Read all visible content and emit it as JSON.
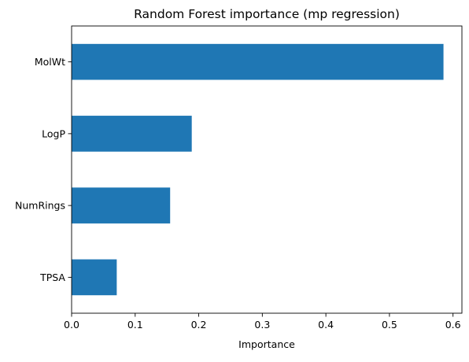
{
  "chart_data": {
    "type": "bar",
    "orientation": "horizontal",
    "title": "Random Forest importance (mp regression)",
    "xlabel": "Importance",
    "ylabel": "",
    "categories": [
      "MolWt",
      "LogP",
      "NumRings",
      "TPSA"
    ],
    "values": [
      0.585,
      0.189,
      0.155,
      0.071
    ],
    "xlim": [
      0.0,
      0.614
    ],
    "xticks": [
      0.0,
      0.1,
      0.2,
      0.3,
      0.4,
      0.5,
      0.6
    ],
    "xtick_labels": [
      "0.0",
      "0.1",
      "0.2",
      "0.3",
      "0.4",
      "0.5",
      "0.6"
    ],
    "grid": false,
    "legend": "none",
    "bar_color": "#1f77b4"
  }
}
